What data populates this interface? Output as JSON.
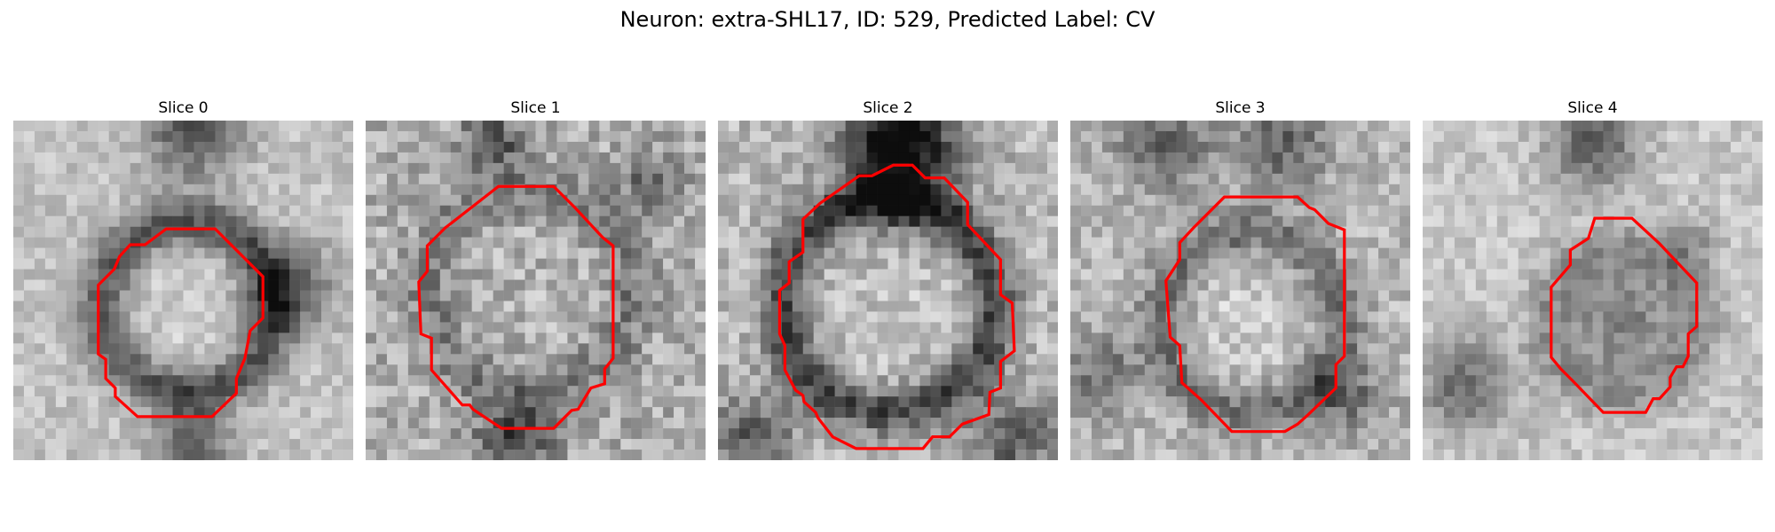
{
  "figure": {
    "title": "Neuron: extra-SHL17, ID: 529, Predicted Label: CV"
  },
  "colors": {
    "contour": "#ff0000",
    "background": "#ffffff"
  },
  "panels": [
    {
      "title": "Slice 0",
      "image": "grayscale-em-patch",
      "overlay": "red-contour-outline"
    },
    {
      "title": "Slice 1",
      "image": "grayscale-em-patch",
      "overlay": "red-contour-outline"
    },
    {
      "title": "Slice 2",
      "image": "grayscale-em-patch",
      "overlay": "red-contour-outline"
    },
    {
      "title": "Slice 3",
      "image": "grayscale-em-patch",
      "overlay": "red-contour-outline"
    },
    {
      "title": "Slice 4",
      "image": "grayscale-em-patch",
      "overlay": "red-contour-outline"
    }
  ]
}
